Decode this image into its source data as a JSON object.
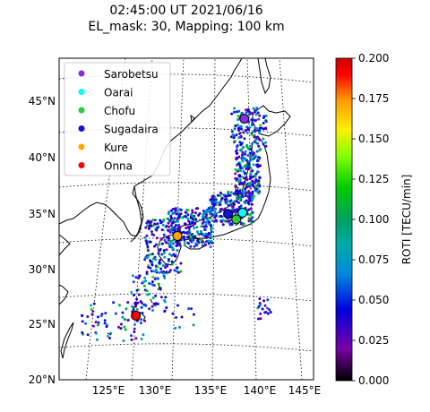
{
  "title": {
    "line1": "02:45:00 UT 2021/06/16",
    "line2": "EL_mask: 30, Mapping: 100 km"
  },
  "chart_data": {
    "type": "scatter",
    "x_ticks": [
      "125°E",
      "130°E",
      "135°E",
      "140°E",
      "145°E"
    ],
    "y_ticks": [
      "20°N",
      "25°N",
      "30°N",
      "35°N",
      "40°N",
      "45°N"
    ],
    "lon_range": [
      120,
      145
    ],
    "lat_range": [
      20,
      49
    ],
    "colorbar": {
      "label": "ROTI [TECU/min]",
      "range": [
        0.0,
        0.2
      ],
      "ticks": [
        "0.000",
        "0.025",
        "0.050",
        "0.075",
        "0.100",
        "0.125",
        "0.150",
        "0.175",
        "0.200"
      ],
      "colormap": "nipy_spectral"
    },
    "stations": [
      {
        "name": "Sarobetsu",
        "color": "#8a2be2",
        "lon": 140.0,
        "lat": 43.6
      },
      {
        "name": "Oarai",
        "color": "#00ffff",
        "lon": 139.8,
        "lat": 35.1
      },
      {
        "name": "Chofu",
        "color": "#2ecc40",
        "lon": 139.1,
        "lat": 34.5
      },
      {
        "name": "Sugadaira",
        "color": "#1010e0",
        "lon": 138.2,
        "lat": 35.0
      },
      {
        "name": "Kure",
        "color": "#ffa500",
        "lon": 132.6,
        "lat": 33.0
      },
      {
        "name": "Onna",
        "color": "#ff0000",
        "lon": 128.0,
        "lat": 25.8
      }
    ]
  }
}
